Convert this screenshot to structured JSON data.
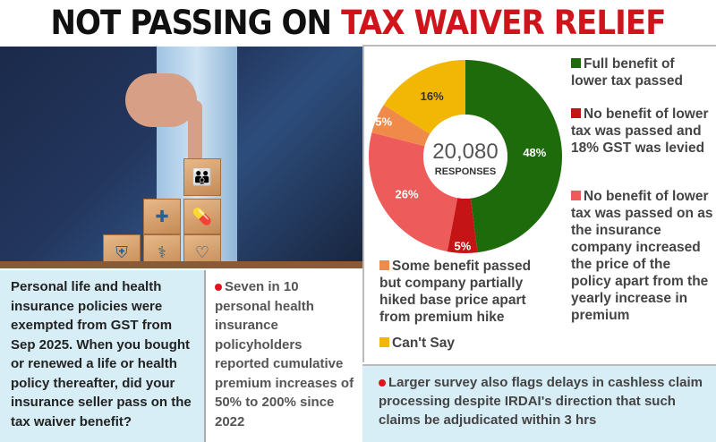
{
  "title": {
    "part1": "NOT PASSING ON",
    "part2": "TAX WAIVER RELIEF",
    "part2_color": "#d0141c"
  },
  "photo": {
    "subject": "hand-stacking-wooden-blocks-with-insurance-icons",
    "icons": [
      "family-icon",
      "medical-kit-icon",
      "pills-icon",
      "shield-icon",
      "stethoscope-icon",
      "heart-hand-icon"
    ]
  },
  "chart_data": {
    "type": "pie",
    "style": "donut",
    "center_value": "20,080",
    "center_label": "RESPONSES",
    "legend_placement": "right-and-bottom",
    "slices": [
      {
        "name": "Full benefit of lower tax passed",
        "value": 48,
        "label": "48%",
        "color": "#1e6b0c"
      },
      {
        "name": "No benefit of lower tax was passed and 18% GST was levied",
        "value": 5,
        "label": "5%",
        "color": "#c41416"
      },
      {
        "name": "No benefit of lower tax was passed on as the insurance company increased the price of the policy apart from the yearly increase in premium",
        "value": 26,
        "label": "26%",
        "color": "#ee5b5b"
      },
      {
        "name": "Some benefit passed but company partially hiked base price apart from premium hike",
        "value": 5,
        "label": "5%",
        "color": "#f08a4b"
      },
      {
        "name": "Can't Say",
        "value": 16,
        "label": "16%",
        "color": "#f2b705"
      }
    ]
  },
  "question": "Personal life and health insurance policies were exempted from GST from Sep 2025. When you bought or renewed a life or health policy thereafter, did your insurance seller pass on the tax waiver benefit?",
  "notes": [
    "Seven in 10 personal health insurance policyholders reported cumulative premium increases of 50% to 200% since 2022",
    "Larger survey also flags delays in cashless claim processing despite IRDAI's direction that such claims be adjudicated within 3 hrs"
  ]
}
